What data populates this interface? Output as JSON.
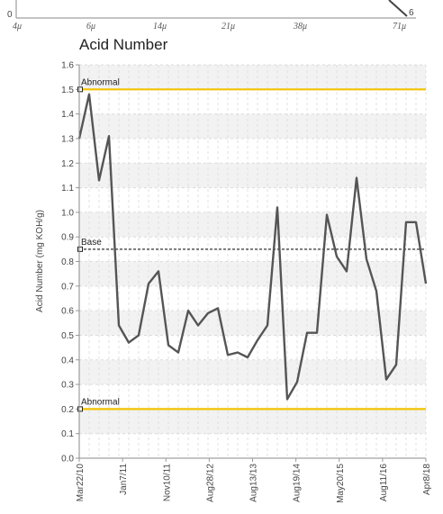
{
  "top_strip": {
    "x_ticks": [
      "4μ",
      "6μ",
      "14μ",
      "21μ",
      "38μ",
      "71μ"
    ],
    "y_tick": "0",
    "corner_value": "6"
  },
  "chart_data": {
    "type": "line",
    "title": "Acid Number",
    "ylabel": "Acid Number (mg KOH/g)",
    "xlabel": "",
    "ylim": [
      0,
      1.6
    ],
    "y_ticks": [
      0.0,
      0.1,
      0.2,
      0.3,
      0.4,
      0.5,
      0.6,
      0.7,
      0.8,
      0.9,
      1.0,
      1.1,
      1.2,
      1.3,
      1.4,
      1.5,
      1.6
    ],
    "x_tick_labels": [
      "Mar22/10",
      "Jan7/11",
      "Nov10/11",
      "Aug28/12",
      "Aug13/13",
      "Aug19/14",
      "May20/15",
      "Aug11/16",
      "Apr8/18"
    ],
    "grid": true,
    "reference_lines": [
      {
        "label": "Abnormal",
        "value": 1.5,
        "color": "#f2c200",
        "style": "solid"
      },
      {
        "label": "Base",
        "value": 0.85,
        "color": "#333333",
        "style": "dashed"
      },
      {
        "label": "Abnormal",
        "value": 0.2,
        "color": "#f2c200",
        "style": "solid"
      }
    ],
    "series": [
      {
        "color": "#555555",
        "values": [
          1.3,
          1.48,
          1.13,
          1.31,
          0.54,
          0.47,
          0.5,
          0.71,
          0.76,
          0.46,
          0.43,
          0.6,
          0.54,
          0.59,
          0.61,
          0.42,
          0.43,
          0.41,
          0.48,
          0.54,
          1.02,
          0.24,
          0.31,
          0.51,
          0.51,
          0.99,
          0.82,
          0.76,
          1.14,
          0.81,
          0.68,
          0.32,
          0.38,
          0.96,
          0.96,
          0.71
        ]
      }
    ]
  }
}
